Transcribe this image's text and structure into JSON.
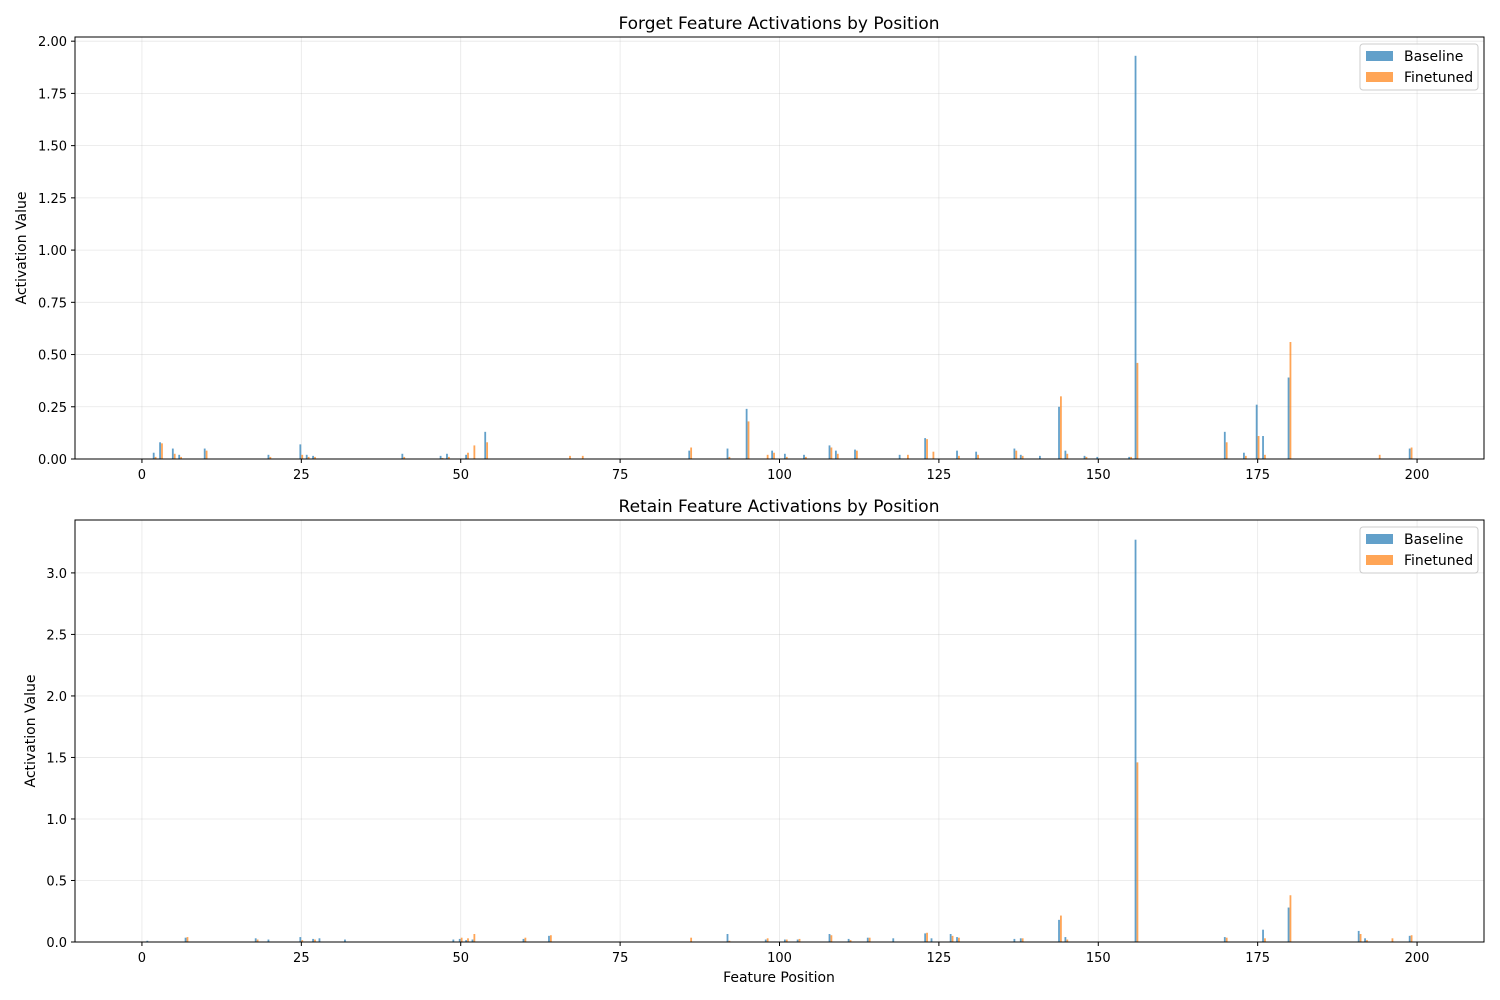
{
  "chart_data": [
    {
      "type": "bar",
      "title": "Forget Feature Activations by Position",
      "xlabel": "",
      "ylabel": "Activation Value",
      "xlim": [
        -10.5,
        210.5
      ],
      "ylim": [
        0,
        2.02
      ],
      "xticks": [
        0,
        25,
        50,
        75,
        100,
        125,
        150,
        175,
        200
      ],
      "xtick_labels": [
        "0",
        "25",
        "50",
        "75",
        "100",
        "125",
        "150",
        "175",
        "200"
      ],
      "yticks": [
        0,
        0.25,
        0.5,
        0.75,
        1.0,
        1.25,
        1.5,
        1.75,
        2.0
      ],
      "ytick_labels": [
        "0.00",
        "0.25",
        "0.50",
        "0.75",
        "1.00",
        "1.25",
        "1.50",
        "1.75",
        "2.00"
      ],
      "grid": true,
      "legend_position": "top-right",
      "colors": {
        "Baseline": "#1f77b4",
        "Finetuned": "#ff7f0e"
      },
      "series": [
        {
          "name": "Baseline",
          "x": [
            2,
            3,
            5,
            6,
            10,
            20,
            25,
            26,
            27,
            41,
            47,
            48,
            51,
            54,
            86,
            92,
            95,
            99,
            101,
            104,
            108,
            109,
            112,
            119,
            123,
            128,
            131,
            137,
            138,
            141,
            144,
            145,
            148,
            150,
            155,
            156,
            170,
            173,
            175,
            176,
            180,
            199
          ],
          "values": [
            0.03,
            0.08,
            0.05,
            0.02,
            0.05,
            0.02,
            0.07,
            0.02,
            0.015,
            0.025,
            0.015,
            0.025,
            0.02,
            0.13,
            0.04,
            0.05,
            0.24,
            0.04,
            0.025,
            0.02,
            0.065,
            0.04,
            0.045,
            0.02,
            0.1,
            0.04,
            0.035,
            0.05,
            0.02,
            0.015,
            0.25,
            0.04,
            0.015,
            0.01,
            0.01,
            1.93,
            0.13,
            0.03,
            0.26,
            0.11,
            0.39,
            0.05
          ]
        },
        {
          "name": "Finetuned",
          "x": [
            2,
            3,
            5,
            6,
            10,
            20,
            25,
            26,
            27,
            41,
            47,
            48,
            51,
            52,
            54,
            67,
            69,
            86,
            92,
            95,
            98,
            99,
            101,
            104,
            108,
            109,
            112,
            120,
            123,
            124,
            128,
            131,
            137,
            138,
            144,
            145,
            148,
            155,
            156,
            170,
            173,
            175,
            176,
            180,
            194,
            199
          ],
          "values": [
            0.01,
            0.075,
            0.025,
            0.01,
            0.04,
            0.01,
            0.02,
            0.01,
            0.01,
            0.01,
            0.005,
            0.01,
            0.03,
            0.065,
            0.08,
            0.015,
            0.015,
            0.055,
            0.01,
            0.18,
            0.02,
            0.03,
            0.01,
            0.01,
            0.055,
            0.025,
            0.04,
            0.02,
            0.095,
            0.035,
            0.015,
            0.02,
            0.04,
            0.015,
            0.3,
            0.025,
            0.01,
            0.01,
            0.46,
            0.08,
            0.015,
            0.11,
            0.02,
            0.56,
            0.02,
            0.055
          ]
        }
      ]
    },
    {
      "type": "bar",
      "title": "Retain Feature Activations by Position",
      "xlabel": "Feature Position",
      "ylabel": "Activation Value",
      "xlim": [
        -10.5,
        210.5
      ],
      "ylim": [
        0,
        3.43
      ],
      "xticks": [
        0,
        25,
        50,
        75,
        100,
        125,
        150,
        175,
        200
      ],
      "xtick_labels": [
        "0",
        "25",
        "50",
        "75",
        "100",
        "125",
        "150",
        "175",
        "200"
      ],
      "yticks": [
        0,
        0.5,
        1.0,
        1.5,
        2.0,
        2.5,
        3.0
      ],
      "ytick_labels": [
        "0.0",
        "0.5",
        "1.0",
        "1.5",
        "2.0",
        "2.5",
        "3.0"
      ],
      "grid": true,
      "legend_position": "top-right",
      "colors": {
        "Baseline": "#1f77b4",
        "Finetuned": "#ff7f0e"
      },
      "series": [
        {
          "name": "Baseline",
          "x": [
            1,
            7,
            18,
            20,
            25,
            27,
            28,
            32,
            49,
            50,
            51,
            52,
            60,
            64,
            92,
            98,
            101,
            103,
            108,
            111,
            114,
            118,
            123,
            124,
            127,
            128,
            137,
            138,
            144,
            145,
            156,
            170,
            176,
            180,
            191,
            192,
            199
          ],
          "values": [
            0.01,
            0.035,
            0.03,
            0.02,
            0.04,
            0.025,
            0.03,
            0.02,
            0.02,
            0.025,
            0.015,
            0.02,
            0.025,
            0.05,
            0.065,
            0.02,
            0.02,
            0.02,
            0.065,
            0.025,
            0.035,
            0.03,
            0.07,
            0.03,
            0.065,
            0.04,
            0.025,
            0.03,
            0.18,
            0.04,
            3.27,
            0.04,
            0.1,
            0.28,
            0.09,
            0.03,
            0.05
          ]
        },
        {
          "name": "Finetuned",
          "x": [
            7,
            18,
            25,
            27,
            50,
            51,
            52,
            60,
            64,
            86,
            92,
            98,
            101,
            103,
            108,
            111,
            114,
            123,
            127,
            128,
            138,
            144,
            145,
            156,
            170,
            176,
            180,
            191,
            192,
            196,
            199
          ],
          "values": [
            0.04,
            0.02,
            0.015,
            0.02,
            0.035,
            0.03,
            0.065,
            0.035,
            0.055,
            0.035,
            0.01,
            0.03,
            0.02,
            0.025,
            0.055,
            0.015,
            0.035,
            0.075,
            0.05,
            0.035,
            0.03,
            0.215,
            0.02,
            1.46,
            0.035,
            0.03,
            0.38,
            0.065,
            0.015,
            0.03,
            0.055
          ]
        }
      ]
    }
  ]
}
